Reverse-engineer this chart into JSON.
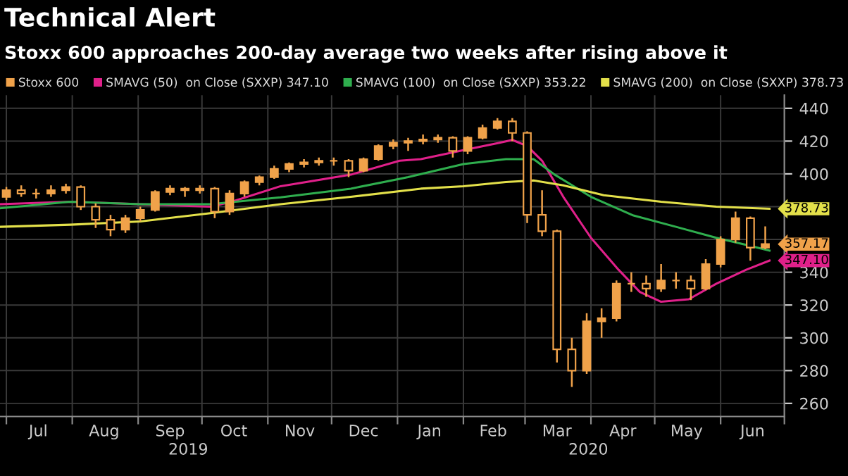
{
  "chart_data": {
    "type": "candlestick",
    "title": "Technical Alert",
    "subtitle": "Stoxx 600 approaches 200-day average two weeks after rising above it",
    "xlim": [
      "2019-06-28",
      "2020-07-01"
    ],
    "ylim": [
      252,
      448
    ],
    "yticks": [
      260,
      280,
      300,
      320,
      340,
      {
        "value": 360,
        "label": null
      },
      {
        "value": 380,
        "label": null
      },
      400,
      420,
      440
    ],
    "xticks": [
      {
        "value": "2019-07-01",
        "label": null
      },
      {
        "value": "2019-07-16",
        "label": "Jul"
      },
      {
        "value": "2019-08-01",
        "label": null
      },
      {
        "value": "2019-08-16",
        "label": "Aug"
      },
      {
        "value": "2019-09-01",
        "label": null
      },
      {
        "value": "2019-09-16",
        "label": "Sep"
      },
      {
        "value": "2019-10-01",
        "label": null
      },
      {
        "value": "2019-10-16",
        "label": "Oct"
      },
      {
        "value": "2019-11-01",
        "label": null
      },
      {
        "value": "2019-11-16",
        "label": "Nov"
      },
      {
        "value": "2019-12-01",
        "label": null
      },
      {
        "value": "2019-12-16",
        "label": "Dec"
      },
      {
        "value": "2020-01-01",
        "label": null
      },
      {
        "value": "2020-01-16",
        "label": "Jan"
      },
      {
        "value": "2020-02-01",
        "label": null
      },
      {
        "value": "2020-02-15",
        "label": "Feb"
      },
      {
        "value": "2020-03-01",
        "label": null
      },
      {
        "value": "2020-03-16",
        "label": "Mar"
      },
      {
        "value": "2020-04-01",
        "label": null
      },
      {
        "value": "2020-04-16",
        "label": "Apr"
      },
      {
        "value": "2020-05-01",
        "label": null
      },
      {
        "value": "2020-05-16",
        "label": "May"
      },
      {
        "value": "2020-06-01",
        "label": null
      },
      {
        "value": "2020-06-16",
        "label": "Jun"
      },
      {
        "value": "2020-07-01",
        "label": null
      }
    ],
    "grid": true,
    "legend": "top",
    "annotations": [
      "2019",
      "2020",
      {
        "text": "378.73",
        "x": "2020-06-24",
        "y": 378.73
      },
      {
        "text": "357.17",
        "x": "2020-06-24",
        "y": 357.17
      },
      {
        "text": "347.10",
        "x": "2020-06-24",
        "y": 347.1
      }
    ],
    "series": [
      {
        "name": "Stoxx 600",
        "color": "#f0a24a",
        "x": [
          "2019-07-01",
          "2019-07-08",
          "2019-07-15",
          "2019-07-22",
          "2019-07-29",
          "2019-08-05",
          "2019-08-12",
          "2019-08-19",
          "2019-08-26",
          "2019-09-02",
          "2019-09-09",
          "2019-09-16",
          "2019-09-23",
          "2019-09-30",
          "2019-10-07",
          "2019-10-14",
          "2019-10-21",
          "2019-10-28",
          "2019-11-04",
          "2019-11-11",
          "2019-11-18",
          "2019-11-25",
          "2019-12-02",
          "2019-12-09",
          "2019-12-16",
          "2019-12-23",
          "2019-12-30",
          "2020-01-06",
          "2020-01-13",
          "2020-01-20",
          "2020-01-27",
          "2020-02-03",
          "2020-02-10",
          "2020-02-17",
          "2020-02-24",
          "2020-03-02",
          "2020-03-09",
          "2020-03-16",
          "2020-03-23",
          "2020-03-30",
          "2020-04-06",
          "2020-04-13",
          "2020-04-20",
          "2020-04-27",
          "2020-05-04",
          "2020-05-11",
          "2020-05-18",
          "2020-05-25",
          "2020-06-01",
          "2020-06-08",
          "2020-06-15",
          "2020-06-22"
        ],
        "ohlc": [
          [
            386,
            392,
            384,
            390
          ],
          [
            390,
            393,
            386,
            388
          ],
          [
            388,
            391,
            385,
            388
          ],
          [
            388,
            393,
            386,
            390
          ],
          [
            390,
            394,
            388,
            392
          ],
          [
            392,
            393,
            378,
            380
          ],
          [
            380,
            382,
            367,
            372
          ],
          [
            372,
            375,
            362,
            366
          ],
          [
            366,
            375,
            364,
            373
          ],
          [
            373,
            380,
            371,
            378
          ],
          [
            378,
            390,
            377,
            389
          ],
          [
            389,
            393,
            387,
            391
          ],
          [
            391,
            392,
            386,
            390
          ],
          [
            390,
            393,
            388,
            391
          ],
          [
            391,
            392,
            373,
            377
          ],
          [
            377,
            390,
            375,
            388
          ],
          [
            388,
            396,
            386,
            395
          ],
          [
            395,
            399,
            393,
            398
          ],
          [
            398,
            405,
            397,
            403
          ],
          [
            403,
            407,
            401,
            406
          ],
          [
            406,
            409,
            404,
            407
          ],
          [
            407,
            410,
            405,
            408
          ],
          [
            408,
            410,
            405,
            408
          ],
          [
            408,
            409,
            398,
            402
          ],
          [
            402,
            410,
            401,
            409
          ],
          [
            409,
            418,
            408,
            417
          ],
          [
            417,
            421,
            415,
            419
          ],
          [
            419,
            422,
            414,
            420
          ],
          [
            420,
            424,
            418,
            421
          ],
          [
            421,
            424,
            419,
            422
          ],
          [
            422,
            423,
            410,
            414
          ],
          [
            414,
            423,
            412,
            422
          ],
          [
            422,
            430,
            421,
            428
          ],
          [
            428,
            434,
            427,
            432
          ],
          [
            432,
            434,
            420,
            425
          ],
          [
            425,
            426,
            370,
            375
          ],
          [
            375,
            390,
            362,
            365
          ],
          [
            365,
            366,
            285,
            293
          ],
          [
            293,
            300,
            270,
            280
          ],
          [
            280,
            315,
            278,
            310
          ],
          [
            310,
            318,
            300,
            312
          ],
          [
            312,
            335,
            310,
            333
          ],
          [
            333,
            340,
            328,
            333
          ],
          [
            333,
            338,
            325,
            330
          ],
          [
            330,
            345,
            328,
            335
          ],
          [
            335,
            340,
            330,
            335
          ],
          [
            335,
            338,
            323,
            330
          ],
          [
            330,
            348,
            329,
            345
          ],
          [
            345,
            362,
            343,
            360
          ],
          [
            360,
            377,
            358,
            373
          ],
          [
            373,
            374,
            347,
            355
          ],
          [
            355,
            368,
            354,
            357.17
          ]
        ]
      },
      {
        "name": "SMAVG (50)  on Close (SXXP) 347.10",
        "type": "line",
        "color": "#e0208a",
        "x": [
          "2019-06-28",
          "2019-07-31",
          "2019-09-02",
          "2019-10-05",
          "2019-10-15",
          "2019-11-07",
          "2019-12-10",
          "2020-01-02",
          "2020-01-12",
          "2020-02-01",
          "2020-02-18",
          "2020-02-24",
          "2020-03-02",
          "2020-03-09",
          "2020-03-19",
          "2020-04-01",
          "2020-04-14",
          "2020-04-24",
          "2020-05-04",
          "2020-05-17",
          "2020-05-30",
          "2020-06-13",
          "2020-06-24"
        ],
        "values": [
          381.5,
          383,
          381.5,
          380,
          383,
          392.5,
          399.5,
          408,
          409,
          414.5,
          419,
          420.7,
          417,
          408,
          386,
          361,
          341.5,
          328,
          322,
          323.5,
          333,
          341.5,
          347.1
        ]
      },
      {
        "name": "SMAVG (100)  on Close (SXXP) 353.22",
        "type": "line",
        "color": "#2fae4e",
        "x": [
          "2019-06-28",
          "2019-07-31",
          "2019-09-02",
          "2019-10-05",
          "2019-11-07",
          "2019-12-10",
          "2020-01-06",
          "2020-02-01",
          "2020-02-21",
          "2020-03-05",
          "2020-03-15",
          "2020-04-01",
          "2020-04-21",
          "2020-05-11",
          "2020-05-30",
          "2020-06-13",
          "2020-06-24"
        ],
        "values": [
          379,
          383,
          381.5,
          381.5,
          385.7,
          391,
          398,
          406,
          409,
          409,
          399.5,
          386,
          374.6,
          367.7,
          361,
          356.7,
          353.22
        ]
      },
      {
        "name": "SMAVG (200)  on Close (SXXP) 378.73",
        "type": "line",
        "color": "#e3e04a",
        "x": [
          "2019-06-28",
          "2019-07-31",
          "2019-09-02",
          "2019-10-05",
          "2019-11-07",
          "2019-12-10",
          "2020-01-12",
          "2020-02-01",
          "2020-02-21",
          "2020-03-05",
          "2020-03-19",
          "2020-04-07",
          "2020-05-04",
          "2020-05-30",
          "2020-06-24"
        ],
        "values": [
          367.7,
          369,
          371,
          376,
          381.5,
          386,
          391,
          392.5,
          395,
          396,
          393,
          387,
          383,
          380,
          378.73
        ]
      }
    ]
  }
}
